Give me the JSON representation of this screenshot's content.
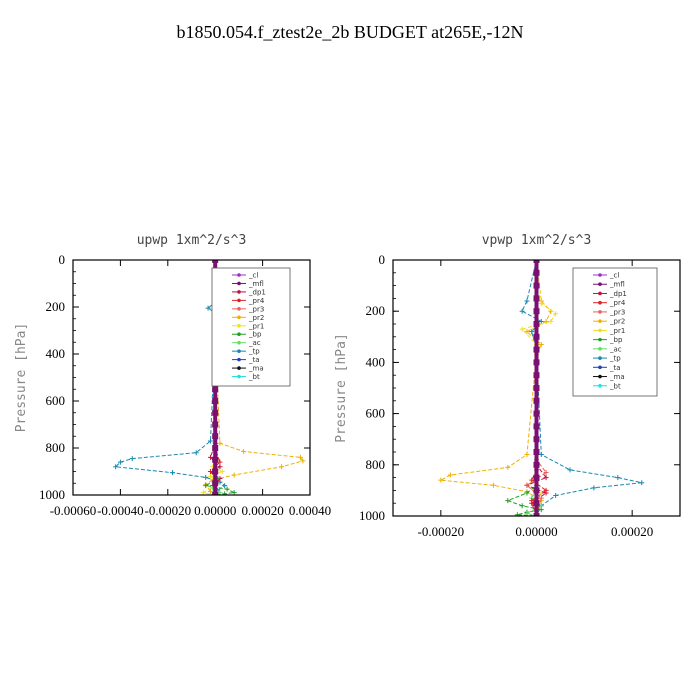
{
  "title": "b1850.054.f_ztest2e_2b  BUDGET at265E,-12N",
  "legend": {
    "entries": [
      "_cl",
      "_mfl",
      "_dp1",
      "_pr4",
      "_pr3",
      "_pr2",
      "_pr1",
      "_bp",
      "_ac",
      "_tp",
      "_ta",
      "_ma",
      "_bt"
    ],
    "colors": [
      "#9b30c8",
      "#7a1070",
      "#c01040",
      "#e02020",
      "#e86060",
      "#f0b000",
      "#f0e020",
      "#20a020",
      "#60e060",
      "#1888b0",
      "#2040c0",
      "#101010",
      "#20e0e0"
    ],
    "placement": "upper-right"
  },
  "chart_data": [
    {
      "type": "line",
      "title": "upwp  1xm^2/s^3",
      "ylabel": "Pressure [hPa]",
      "xlabel": "",
      "xlim": [
        -0.0006,
        0.0004
      ],
      "ylim": [
        1000,
        0
      ],
      "xticks": [
        "-0.00060",
        "-0.00040",
        "-0.00020",
        "0.00000",
        "0.00020",
        "0.00040"
      ],
      "yticks": [
        "0",
        "200",
        "400",
        "600",
        "800",
        "1000"
      ],
      "series": [
        {
          "name": "_tp",
          "x": [
            0,
            1e-05,
            -3e-05,
            1e-05,
            0,
            -2e-05,
            -8e-05,
            -0.00035,
            -0.0004,
            -0.00042,
            -0.00018,
            -4e-05,
            2e-05,
            4e-05,
            1e-05,
            0
          ],
          "y": [
            0,
            170,
            205,
            230,
            300,
            770,
            820,
            845,
            860,
            880,
            905,
            925,
            945,
            960,
            980,
            1000
          ]
        },
        {
          "name": "_pr2",
          "x": [
            0,
            1e-05,
            3e-05,
            1e-05,
            0,
            2e-05,
            0.00012,
            0.00036,
            0.00037,
            0.00028,
            8e-05,
            -1e-05,
            -4e-05,
            -2e-05,
            0
          ],
          "y": [
            0,
            180,
            210,
            235,
            300,
            780,
            815,
            840,
            855,
            880,
            915,
            935,
            955,
            985,
            1000
          ]
        },
        {
          "name": "_pr1",
          "x": [
            0,
            2e-05,
            3e-05,
            1e-05,
            0,
            1e-05,
            -1e-05,
            3e-05,
            -2e-05,
            1e-05,
            -5e-05,
            0
          ],
          "y": [
            0,
            190,
            210,
            230,
            300,
            850,
            880,
            900,
            920,
            950,
            990,
            1000
          ]
        },
        {
          "name": "_dp1",
          "x": [
            0,
            0,
            -2e-05,
            2e-05,
            -2e-05,
            2e-05,
            -1e-05,
            0
          ],
          "y": [
            0,
            780,
            840,
            880,
            900,
            930,
            960,
            1000
          ]
        },
        {
          "name": "_pr4",
          "x": [
            0,
            0,
            2e-05,
            -2e-05,
            1e-05,
            -1e-05,
            0
          ],
          "y": [
            0,
            800,
            860,
            900,
            940,
            970,
            1000
          ]
        },
        {
          "name": "_bp",
          "x": [
            0,
            0,
            1e-05,
            -4e-05,
            5e-05,
            8e-05,
            4e-05,
            0
          ],
          "y": [
            0,
            900,
            930,
            960,
            975,
            990,
            995,
            1000
          ]
        },
        {
          "name": "_ac",
          "x": [
            0,
            0,
            1e-05,
            -1e-05,
            2e-05,
            0
          ],
          "y": [
            0,
            920,
            950,
            970,
            990,
            1000
          ]
        },
        {
          "name": "_mfl",
          "x": [
            0,
            0,
            0,
            0,
            0,
            0,
            0,
            0,
            0,
            0,
            0,
            0,
            0,
            0,
            0,
            0,
            0,
            0,
            0,
            0,
            0
          ],
          "y": [
            0,
            50,
            100,
            150,
            200,
            250,
            300,
            350,
            400,
            450,
            500,
            550,
            600,
            650,
            700,
            750,
            800,
            850,
            900,
            950,
            1000
          ]
        }
      ]
    },
    {
      "type": "line",
      "title": "vpwp  1xm^2/s^3",
      "ylabel": "Pressure [hPa]",
      "xlabel": "",
      "xlim": [
        -0.0003,
        0.0003
      ],
      "ylim": [
        1000,
        0
      ],
      "xticks": [
        "-0.00020",
        "0.00000",
        "0.00020"
      ],
      "yticks": [
        "0",
        "200",
        "400",
        "600",
        "800",
        "1000"
      ],
      "series": [
        {
          "name": "_tp",
          "x": [
            0,
            -2e-05,
            -3e-05,
            1e-05,
            -1e-05,
            0,
            1e-05,
            7e-05,
            0.00017,
            0.00022,
            0.00012,
            4e-05,
            1e-05,
            0
          ],
          "y": [
            0,
            160,
            200,
            240,
            280,
            350,
            760,
            820,
            850,
            870,
            890,
            920,
            960,
            1000
          ]
        },
        {
          "name": "_pr2",
          "x": [
            0,
            1e-05,
            3e-05,
            2e-05,
            -2e-05,
            1e-05,
            0,
            -2e-05,
            -6e-05,
            -0.00018,
            -0.0002,
            -9e-05,
            -2e-05,
            1e-05,
            0
          ],
          "y": [
            0,
            160,
            200,
            240,
            280,
            330,
            370,
            760,
            810,
            840,
            860,
            880,
            905,
            940,
            1000
          ]
        },
        {
          "name": "_pr1",
          "x": [
            0,
            1e-05,
            4e-05,
            3e-05,
            -3e-05,
            0,
            0,
            -2e-05,
            1e-05,
            0
          ],
          "y": [
            0,
            170,
            210,
            240,
            270,
            330,
            850,
            880,
            910,
            1000
          ]
        },
        {
          "name": "_bp",
          "x": [
            0,
            0,
            -2e-05,
            -6e-05,
            -3e-05,
            1e-05,
            -2e-05,
            -4e-05,
            0
          ],
          "y": [
            0,
            880,
            910,
            940,
            960,
            975,
            985,
            995,
            1000
          ]
        },
        {
          "name": "_ac",
          "x": [
            0,
            0,
            -1e-05,
            1e-05,
            -2e-05,
            0
          ],
          "y": [
            0,
            900,
            930,
            960,
            990,
            1000
          ]
        },
        {
          "name": "_dp1",
          "x": [
            0,
            0,
            2e-05,
            -2e-05,
            2e-05,
            -1e-05,
            0
          ],
          "y": [
            0,
            800,
            850,
            880,
            910,
            950,
            1000
          ]
        },
        {
          "name": "_pr4",
          "x": [
            0,
            0,
            -1e-05,
            2e-05,
            -1e-05,
            0
          ],
          "y": [
            0,
            820,
            860,
            900,
            940,
            1000
          ]
        },
        {
          "name": "_pr3",
          "x": [
            0,
            0,
            2e-05,
            -2e-05,
            1e-05,
            0
          ],
          "y": [
            0,
            780,
            830,
            880,
            930,
            1000
          ]
        },
        {
          "name": "_mfl",
          "x": [
            0,
            0,
            0,
            0,
            0,
            0,
            0,
            0,
            0,
            0,
            0,
            0,
            0,
            0,
            0,
            0,
            0,
            0,
            0,
            0,
            0
          ],
          "y": [
            0,
            50,
            100,
            150,
            200,
            250,
            300,
            350,
            400,
            450,
            500,
            550,
            600,
            650,
            700,
            750,
            800,
            850,
            900,
            950,
            1000
          ]
        }
      ]
    }
  ]
}
